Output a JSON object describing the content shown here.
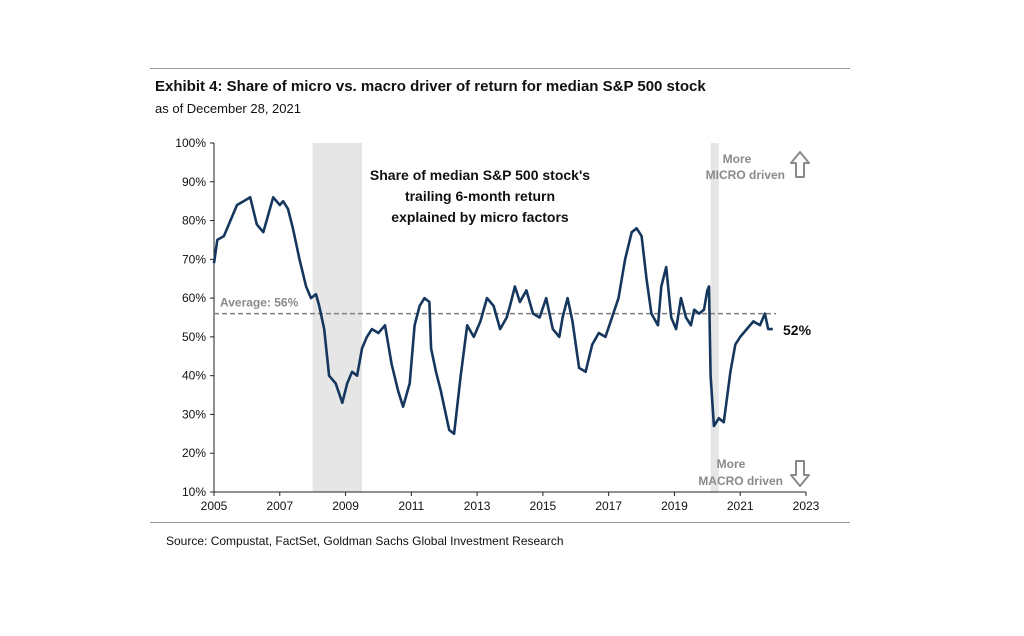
{
  "header": {
    "title": "Exhibit 4: Share of micro vs. macro driver of return for median S&P 500 stock",
    "subtitle": "as of December 28, 2021"
  },
  "footer": {
    "source": "Source: Compustat, FactSet, Goldman Sachs Global Investment Research"
  },
  "colors": {
    "series": "#15375e",
    "recession_shade": "#e6e6e6",
    "average_line": "#7f7f7f",
    "arrow_grey": "#8a8a8a"
  },
  "chart_data": {
    "type": "line",
    "xlim": [
      2005,
      2023
    ],
    "ylim": [
      10,
      100
    ],
    "x_ticks": [
      2005,
      2007,
      2009,
      2011,
      2013,
      2015,
      2017,
      2019,
      2021,
      2023
    ],
    "x_tick_labels": [
      "2005",
      "2007",
      "2009",
      "2011",
      "2013",
      "2015",
      "2017",
      "2019",
      "2021",
      "2023"
    ],
    "y_ticks": [
      10,
      20,
      30,
      40,
      50,
      60,
      70,
      80,
      90,
      100
    ],
    "y_tick_labels": [
      "10%",
      "20%",
      "30%",
      "40%",
      "50%",
      "60%",
      "70%",
      "80%",
      "90%",
      "100%"
    ],
    "grid": false,
    "shaded_periods": [
      [
        2008.0,
        2009.5
      ],
      [
        2020.1,
        2020.35
      ]
    ],
    "average": {
      "value": 56,
      "label": "Average: 56%"
    },
    "last_value_label": "52%",
    "annotation_lines": [
      "Share of median S&P 500 stock's",
      "trailing 6-month return",
      "explained by micro factors"
    ],
    "up_note": [
      "More",
      "MICRO driven"
    ],
    "down_note": [
      "More",
      "MACRO driven"
    ],
    "series": [
      {
        "x": [
          2005.0,
          2005.1,
          2005.3,
          2005.5,
          2005.7,
          2005.9,
          2006.1,
          2006.3,
          2006.5,
          2006.6,
          2006.8,
          2007.0,
          2007.1,
          2007.25,
          2007.4,
          2007.6,
          2007.8,
          2007.95,
          2008.1,
          2008.2,
          2008.35,
          2008.5,
          2008.7,
          2008.9,
          2009.05,
          2009.2,
          2009.35,
          2009.5,
          2009.65,
          2009.8,
          2010.0,
          2010.2,
          2010.4,
          2010.6,
          2010.75,
          2010.95,
          2011.1,
          2011.25,
          2011.4,
          2011.55,
          2011.6,
          2011.75,
          2011.9,
          2012.0,
          2012.15,
          2012.3,
          2012.5,
          2012.7,
          2012.9,
          2013.1,
          2013.3,
          2013.5,
          2013.7,
          2013.9,
          2014.0,
          2014.15,
          2014.3,
          2014.5,
          2014.7,
          2014.9,
          2015.1,
          2015.3,
          2015.5,
          2015.6,
          2015.75,
          2015.9,
          2016.1,
          2016.3,
          2016.5,
          2016.7,
          2016.9,
          2017.1,
          2017.3,
          2017.5,
          2017.7,
          2017.85,
          2018.0,
          2018.15,
          2018.3,
          2018.5,
          2018.6,
          2018.75,
          2018.9,
          2019.05,
          2019.2,
          2019.35,
          2019.5,
          2019.6,
          2019.75,
          2019.9,
          2020.0,
          2020.05,
          2020.1,
          2020.2,
          2020.35,
          2020.5,
          2020.7,
          2020.85,
          2021.0,
          2021.2,
          2021.4,
          2021.6,
          2021.75,
          2021.85,
          2021.99
        ],
        "values": [
          69,
          75,
          76,
          80,
          84,
          85,
          86,
          79,
          77,
          80,
          86,
          84,
          85,
          83,
          78,
          70,
          63,
          60,
          61,
          58,
          52,
          40,
          38,
          33,
          38,
          41,
          40,
          47,
          50,
          52,
          51,
          53,
          43,
          36,
          32,
          38,
          53,
          58,
          60,
          59,
          47,
          41,
          36,
          32,
          26,
          25,
          40,
          53,
          50,
          54,
          60,
          58,
          52,
          55,
          58,
          63,
          59,
          62,
          56,
          55,
          60,
          52,
          50,
          55,
          60,
          54,
          42,
          41,
          48,
          51,
          50,
          55,
          60,
          70,
          77,
          78,
          76,
          65,
          56,
          53,
          63,
          68,
          55,
          52,
          60,
          55,
          53,
          57,
          56,
          57,
          62,
          63,
          40,
          27,
          29,
          28,
          41,
          48,
          50,
          52,
          54,
          53,
          56,
          52,
          52
        ]
      }
    ]
  }
}
